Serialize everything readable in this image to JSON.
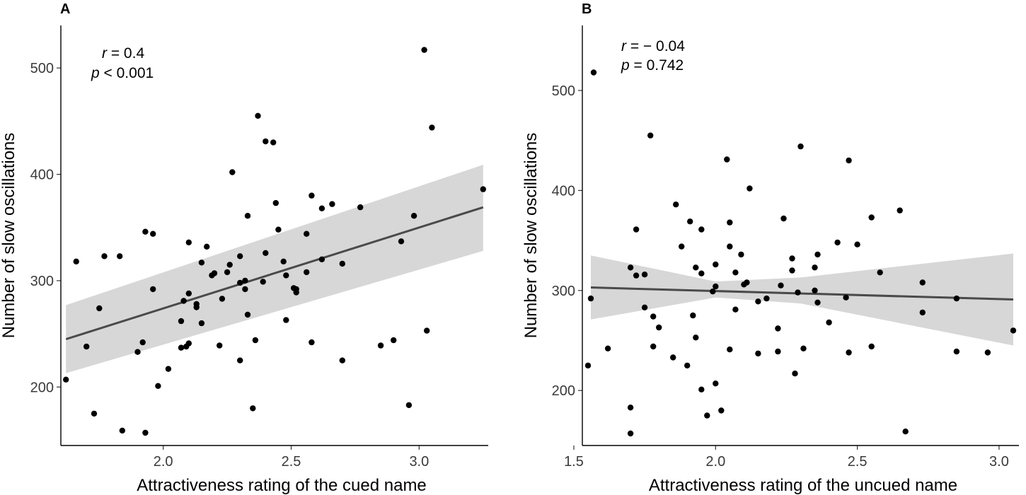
{
  "chart_data": [
    {
      "type": "scatter",
      "panel": "A",
      "xlabel": "Attractiveness rating of the cued name",
      "ylabel": "Number of slow oscillations",
      "xlim": [
        1.6,
        3.27
      ],
      "ylim": [
        145,
        540
      ],
      "xticks": [
        2.0,
        2.5,
        3.0
      ],
      "xtick_labels": [
        "2.0",
        "2.5",
        "3.0"
      ],
      "yticks": [
        200,
        300,
        400,
        500
      ],
      "ytick_labels": [
        "200",
        "300",
        "400",
        "500"
      ],
      "stats": {
        "r_sym": "r",
        "r_value": " = 0.4",
        "p_sym": "p",
        "p_value": " < 0.001"
      },
      "fit": {
        "x": [
          1.62,
          3.25
        ],
        "y": [
          245,
          369
        ]
      },
      "ci_band": {
        "x": [
          1.62,
          3.25
        ],
        "upper": [
          277,
          409
        ],
        "lower": [
          213,
          328
        ]
      },
      "points": [
        [
          1.62,
          207
        ],
        [
          1.66,
          318
        ],
        [
          1.7,
          238
        ],
        [
          1.73,
          175
        ],
        [
          1.75,
          274
        ],
        [
          1.77,
          323
        ],
        [
          1.83,
          323
        ],
        [
          1.84,
          159
        ],
        [
          1.9,
          233
        ],
        [
          1.92,
          242
        ],
        [
          1.93,
          157
        ],
        [
          1.93,
          346
        ],
        [
          1.96,
          292
        ],
        [
          1.96,
          344
        ],
        [
          1.98,
          201
        ],
        [
          2.02,
          217
        ],
        [
          2.07,
          262
        ],
        [
          2.07,
          237
        ],
        [
          2.08,
          281
        ],
        [
          2.09,
          238
        ],
        [
          2.1,
          241
        ],
        [
          2.1,
          288
        ],
        [
          2.1,
          336
        ],
        [
          2.13,
          278
        ],
        [
          2.13,
          275
        ],
        [
          2.15,
          260
        ],
        [
          2.15,
          317
        ],
        [
          2.17,
          332
        ],
        [
          2.19,
          305
        ],
        [
          2.2,
          307
        ],
        [
          2.22,
          239
        ],
        [
          2.23,
          283
        ],
        [
          2.25,
          308
        ],
        [
          2.26,
          315
        ],
        [
          2.27,
          402
        ],
        [
          2.3,
          298
        ],
        [
          2.3,
          323
        ],
        [
          2.3,
          225
        ],
        [
          2.32,
          292
        ],
        [
          2.32,
          300
        ],
        [
          2.33,
          361
        ],
        [
          2.33,
          268
        ],
        [
          2.35,
          180
        ],
        [
          2.36,
          244
        ],
        [
          2.37,
          455
        ],
        [
          2.39,
          299
        ],
        [
          2.4,
          326
        ],
        [
          2.4,
          431
        ],
        [
          2.43,
          430
        ],
        [
          2.44,
          373
        ],
        [
          2.45,
          348
        ],
        [
          2.47,
          318
        ],
        [
          2.48,
          305
        ],
        [
          2.48,
          263
        ],
        [
          2.51,
          293
        ],
        [
          2.52,
          289
        ],
        [
          2.52,
          292
        ],
        [
          2.56,
          308
        ],
        [
          2.56,
          344
        ],
        [
          2.58,
          242
        ],
        [
          2.58,
          380
        ],
        [
          2.62,
          320
        ],
        [
          2.62,
          368
        ],
        [
          2.66,
          372
        ],
        [
          2.7,
          225
        ],
        [
          2.7,
          316
        ],
        [
          2.77,
          369
        ],
        [
          2.85,
          239
        ],
        [
          2.9,
          244
        ],
        [
          2.93,
          337
        ],
        [
          2.96,
          183
        ],
        [
          2.98,
          361
        ],
        [
          3.02,
          517
        ],
        [
          3.03,
          253
        ],
        [
          3.05,
          444
        ],
        [
          3.25,
          386
        ]
      ]
    },
    {
      "type": "scatter",
      "panel": "B",
      "xlabel": "Attractiveness rating of the uncued name",
      "ylabel": "Number of slow oscillations",
      "xlim": [
        1.53,
        3.07
      ],
      "ylim": [
        145,
        565
      ],
      "xticks": [
        1.5,
        2.0,
        2.5,
        3.0
      ],
      "xtick_labels": [
        "1.5",
        "2.0",
        "2.5",
        "3.0"
      ],
      "yticks": [
        200,
        300,
        400,
        500
      ],
      "ytick_labels": [
        "200",
        "300",
        "400",
        "500"
      ],
      "stats": {
        "r_sym": "r",
        "r_value": " = − 0.04",
        "p_sym": "p",
        "p_value": " = 0.742"
      },
      "fit": {
        "x": [
          1.56,
          3.05
        ],
        "y": [
          303,
          291
        ]
      },
      "ci_band": {
        "x": [
          1.56,
          2.0,
          2.3,
          3.05
        ],
        "upper": [
          335,
          309,
          313,
          337
        ],
        "lower": [
          271,
          293,
          287,
          245
        ]
      },
      "points": [
        [
          1.55,
          225
        ],
        [
          1.56,
          292
        ],
        [
          1.57,
          518
        ],
        [
          1.62,
          242
        ],
        [
          1.7,
          157
        ],
        [
          1.7,
          183
        ],
        [
          1.7,
          323
        ],
        [
          1.72,
          315
        ],
        [
          1.72,
          361
        ],
        [
          1.75,
          316
        ],
        [
          1.75,
          283
        ],
        [
          1.77,
          455
        ],
        [
          1.78,
          244
        ],
        [
          1.78,
          274
        ],
        [
          1.8,
          263
        ],
        [
          1.85,
          233
        ],
        [
          1.86,
          386
        ],
        [
          1.88,
          344
        ],
        [
          1.9,
          225
        ],
        [
          1.91,
          369
        ],
        [
          1.92,
          275
        ],
        [
          1.93,
          253
        ],
        [
          1.93,
          323
        ],
        [
          1.95,
          361
        ],
        [
          1.95,
          201
        ],
        [
          1.95,
          317
        ],
        [
          1.97,
          175
        ],
        [
          1.99,
          299
        ],
        [
          2.0,
          326
        ],
        [
          2.0,
          304
        ],
        [
          2.0,
          207
        ],
        [
          2.02,
          180
        ],
        [
          2.04,
          431
        ],
        [
          2.05,
          241
        ],
        [
          2.05,
          344
        ],
        [
          2.05,
          368
        ],
        [
          2.07,
          281
        ],
        [
          2.07,
          318
        ],
        [
          2.09,
          336
        ],
        [
          2.1,
          306
        ],
        [
          2.11,
          308
        ],
        [
          2.12,
          402
        ],
        [
          2.15,
          237
        ],
        [
          2.15,
          289
        ],
        [
          2.18,
          292
        ],
        [
          2.22,
          239
        ],
        [
          2.22,
          262
        ],
        [
          2.23,
          305
        ],
        [
          2.24,
          372
        ],
        [
          2.27,
          320
        ],
        [
          2.27,
          332
        ],
        [
          2.28,
          217
        ],
        [
          2.29,
          298
        ],
        [
          2.3,
          444
        ],
        [
          2.31,
          242
        ],
        [
          2.35,
          300
        ],
        [
          2.35,
          323
        ],
        [
          2.36,
          288
        ],
        [
          2.36,
          336
        ],
        [
          2.4,
          268
        ],
        [
          2.43,
          348
        ],
        [
          2.46,
          293
        ],
        [
          2.47,
          238
        ],
        [
          2.47,
          430
        ],
        [
          2.5,
          346
        ],
        [
          2.55,
          373
        ],
        [
          2.55,
          244
        ],
        [
          2.58,
          318
        ],
        [
          2.65,
          380
        ],
        [
          2.67,
          159
        ],
        [
          2.73,
          308
        ],
        [
          2.73,
          278
        ],
        [
          2.85,
          292
        ],
        [
          2.85,
          239
        ],
        [
          2.96,
          238
        ],
        [
          3.05,
          260
        ]
      ]
    }
  ]
}
